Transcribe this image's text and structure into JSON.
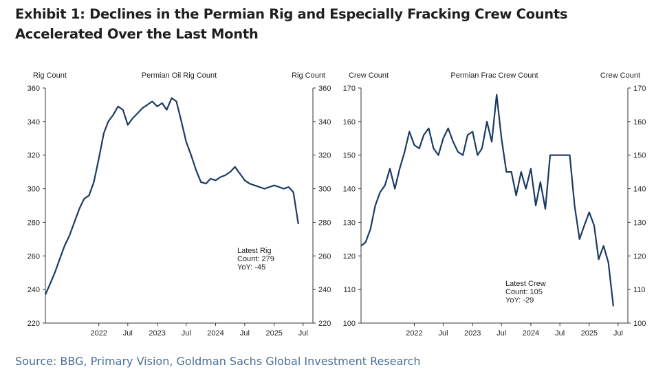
{
  "title": "Exhibit 1: Declines in the Permian Rig and Especially Fracking Crew Counts Accelerated Over the Last Month",
  "source": "Source: BBG, Primary Vision, Goldman Sachs Global Investment Research",
  "chart_data": [
    {
      "type": "line",
      "title": "Permian Oil Rig Count",
      "ylabel_left": "Rig Count",
      "ylabel_right": "Rig Count",
      "ylim": [
        220,
        360
      ],
      "yticks": [
        220,
        240,
        260,
        280,
        300,
        320,
        340,
        360
      ],
      "xlim": [
        "2021-02-01",
        "2025-08-31"
      ],
      "xticks": [
        {
          "label": "2022",
          "date": "2022-01-01"
        },
        {
          "label": "Jul",
          "date": "2022-07-01"
        },
        {
          "label": "2023",
          "date": "2023-01-01"
        },
        {
          "label": "Jul",
          "date": "2023-07-01"
        },
        {
          "label": "2024",
          "date": "2024-01-01"
        },
        {
          "label": "Jul",
          "date": "2024-07-01"
        },
        {
          "label": "2025",
          "date": "2025-01-01"
        },
        {
          "label": "Jul",
          "date": "2025-07-01"
        }
      ],
      "annotation": [
        "Latest Rig",
        "Count: 279",
        "YoY: -45"
      ],
      "line_color": "#1a3a63",
      "series": [
        {
          "x": [
            "2021-02-01",
            "2021-03-01",
            "2021-04-01",
            "2021-05-01",
            "2021-06-01",
            "2021-07-01",
            "2021-08-01",
            "2021-09-01",
            "2021-10-01",
            "2021-11-01",
            "2021-12-01",
            "2022-01-01",
            "2022-02-01",
            "2022-03-01",
            "2022-04-01",
            "2022-05-01",
            "2022-06-01",
            "2022-07-01",
            "2022-08-01",
            "2022-09-01",
            "2022-10-01",
            "2022-11-01",
            "2022-12-01",
            "2023-01-01",
            "2023-02-01",
            "2023-03-01",
            "2023-04-01",
            "2023-05-01",
            "2023-06-01",
            "2023-07-01",
            "2023-08-01",
            "2023-09-01",
            "2023-10-01",
            "2023-11-01",
            "2023-12-01",
            "2024-01-01",
            "2024-02-01",
            "2024-03-01",
            "2024-04-01",
            "2024-05-01",
            "2024-06-01",
            "2024-07-01",
            "2024-08-01",
            "2024-09-01",
            "2024-10-01",
            "2024-11-01",
            "2024-12-01",
            "2025-01-01",
            "2025-02-01",
            "2025-03-01",
            "2025-04-01",
            "2025-05-01",
            "2025-06-01"
          ],
          "y": [
            237,
            243,
            250,
            258,
            266,
            272,
            280,
            288,
            294,
            296,
            304,
            318,
            333,
            340,
            344,
            349,
            347,
            338,
            342,
            345,
            348,
            350,
            352,
            349,
            351,
            347,
            354,
            352,
            340,
            328,
            320,
            311,
            304,
            303,
            306,
            305,
            307,
            308,
            310,
            313,
            309,
            305,
            303,
            302,
            301,
            300,
            301,
            302,
            301,
            300,
            301,
            298,
            279
          ]
        }
      ]
    },
    {
      "type": "line",
      "title": "Permian Frac Crew Count",
      "ylabel_left": "Crew Count",
      "ylabel_right": "Crew Count",
      "ylim": [
        100,
        170
      ],
      "yticks": [
        100,
        110,
        120,
        130,
        140,
        150,
        160,
        170
      ],
      "xlim": [
        "2021-02-01",
        "2025-08-31"
      ],
      "xticks": [
        {
          "label": "2022",
          "date": "2022-01-01"
        },
        {
          "label": "Jul",
          "date": "2022-07-01"
        },
        {
          "label": "2023",
          "date": "2023-01-01"
        },
        {
          "label": "Jul",
          "date": "2023-07-01"
        },
        {
          "label": "2024",
          "date": "2024-01-01"
        },
        {
          "label": "Jul",
          "date": "2024-07-01"
        },
        {
          "label": "2025",
          "date": "2025-01-01"
        },
        {
          "label": "Jul",
          "date": "2025-07-01"
        }
      ],
      "annotation": [
        "Latest Crew",
        "Count: 105",
        "YoY: -29"
      ],
      "line_color": "#1a3a63",
      "series": [
        {
          "x": [
            "2021-02-01",
            "2021-03-01",
            "2021-04-01",
            "2021-05-01",
            "2021-06-01",
            "2021-07-01",
            "2021-08-01",
            "2021-09-01",
            "2021-10-01",
            "2021-11-01",
            "2021-12-01",
            "2022-01-01",
            "2022-02-01",
            "2022-03-01",
            "2022-04-01",
            "2022-05-01",
            "2022-06-01",
            "2022-07-01",
            "2022-08-01",
            "2022-09-01",
            "2022-10-01",
            "2022-11-01",
            "2022-12-01",
            "2023-01-01",
            "2023-02-01",
            "2023-03-01",
            "2023-04-01",
            "2023-05-01",
            "2023-06-01",
            "2023-07-01",
            "2023-08-01",
            "2023-09-01",
            "2023-10-01",
            "2023-11-01",
            "2023-12-01",
            "2024-01-01",
            "2024-02-01",
            "2024-03-01",
            "2024-04-01",
            "2024-05-01",
            "2024-06-01",
            "2024-07-01",
            "2024-08-01",
            "2024-09-01",
            "2024-10-01",
            "2024-11-01",
            "2024-12-01",
            "2025-01-01",
            "2025-02-01",
            "2025-03-01",
            "2025-04-01",
            "2025-05-01",
            "2025-06-01"
          ],
          "y": [
            123,
            124,
            128,
            135,
            139,
            141,
            146,
            140,
            146,
            151,
            157,
            153,
            152,
            156,
            158,
            152,
            150,
            155,
            158,
            154,
            151,
            150,
            156,
            157,
            150,
            152,
            160,
            154,
            168,
            155,
            145,
            145,
            138,
            145,
            140,
            146,
            135,
            142,
            134,
            150,
            150,
            150,
            150,
            150,
            135,
            125,
            129,
            133,
            129,
            119,
            123,
            118,
            105
          ]
        }
      ]
    }
  ]
}
